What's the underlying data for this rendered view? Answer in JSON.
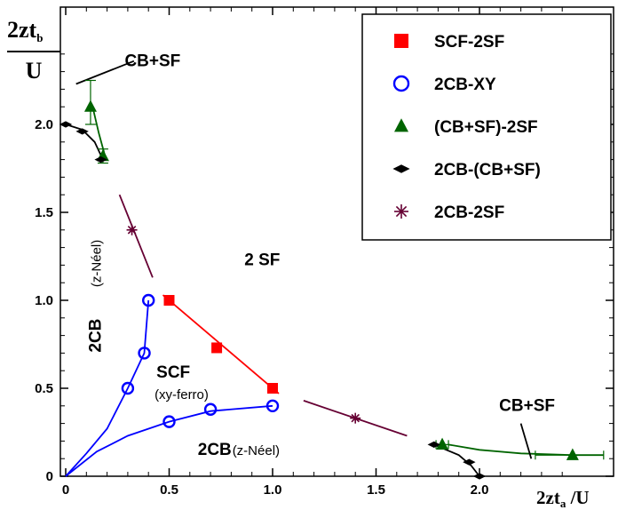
{
  "chart_data": {
    "type": "scatter",
    "title": "",
    "ylabel": {
      "main": "2zt",
      "sub": "b",
      "denominator": "U"
    },
    "xlabel": {
      "main": "2zt",
      "sub": "a",
      "suffix": "/U"
    },
    "xlim": [
      0,
      2.6
    ],
    "ylim": [
      0,
      2.25
    ],
    "xticks": [
      "0",
      "0.5",
      "1.0",
      "1.5",
      "2.0"
    ],
    "xtick_values": [
      0,
      0.5,
      1.0,
      1.5,
      2.0
    ],
    "yticks": [
      "0",
      "0.5",
      "1.0",
      "1.5",
      "2.0"
    ],
    "ytick_values": [
      0,
      0.5,
      1.0,
      1.5,
      2.0
    ],
    "grid": false,
    "legend_position": "top-right",
    "series": [
      {
        "name": "SCF-2SF",
        "marker": "filled-square",
        "color": "#ff0000",
        "x": [
          0.5,
          0.73,
          1.0
        ],
        "y": [
          1.0,
          0.73,
          0.5
        ]
      },
      {
        "name": "2CB-XY",
        "marker": "open-circle",
        "color": "#0000ff",
        "x": [
          0.3,
          0.38,
          0.4,
          0.5,
          0.7,
          1.0
        ],
        "y": [
          0.5,
          0.7,
          1.0,
          0.31,
          0.38,
          0.4
        ]
      },
      {
        "name": "(CB+SF)-2SF",
        "marker": "filled-triangle",
        "color": "#006400",
        "x": [
          0.12,
          0.18,
          1.82,
          2.45
        ],
        "y": [
          2.1,
          1.82,
          0.18,
          0.12
        ]
      },
      {
        "name": "2CB-(CB+SF)",
        "marker": "filled-diamond",
        "color": "#000000",
        "x": [
          0.0,
          0.08,
          0.17,
          1.78,
          1.95,
          2.0
        ],
        "y": [
          2.0,
          1.96,
          1.8,
          0.18,
          0.08,
          0.0
        ]
      },
      {
        "name": "2CB-2SF",
        "marker": "asterisk",
        "color": "#660033",
        "x": [
          0.32,
          1.4
        ],
        "y": [
          1.4,
          0.33
        ]
      }
    ],
    "curves": [
      {
        "color": "#ff0000",
        "points": [
          [
            0.47,
            1.03
          ],
          [
            1.03,
            0.47
          ]
        ]
      },
      {
        "color": "#0000ff",
        "points": [
          [
            0,
            0
          ],
          [
            0.1,
            0.13
          ],
          [
            0.2,
            0.27
          ],
          [
            0.3,
            0.5
          ],
          [
            0.38,
            0.7
          ],
          [
            0.4,
            1.0
          ]
        ]
      },
      {
        "color": "#0000ff",
        "points": [
          [
            0,
            0
          ],
          [
            0.15,
            0.14
          ],
          [
            0.3,
            0.23
          ],
          [
            0.5,
            0.31
          ],
          [
            0.7,
            0.37
          ],
          [
            1.0,
            0.4
          ]
        ]
      },
      {
        "color": "#660033",
        "points": [
          [
            0.26,
            1.6
          ],
          [
            0.42,
            1.13
          ]
        ]
      },
      {
        "color": "#660033",
        "points": [
          [
            1.15,
            0.43
          ],
          [
            1.65,
            0.23
          ]
        ]
      },
      {
        "color": "#006400",
        "points": [
          [
            0.13,
            2.1
          ],
          [
            0.16,
            1.95
          ],
          [
            0.19,
            1.82
          ]
        ]
      },
      {
        "color": "#006400",
        "points": [
          [
            1.85,
            0.18
          ],
          [
            2.0,
            0.15
          ],
          [
            2.2,
            0.13
          ],
          [
            2.45,
            0.12
          ],
          [
            2.6,
            0.12
          ]
        ]
      },
      {
        "color": "#000000",
        "points": [
          [
            0.0,
            2.0
          ],
          [
            0.08,
            1.97
          ],
          [
            0.14,
            1.9
          ],
          [
            0.18,
            1.8
          ]
        ]
      },
      {
        "color": "#000000",
        "points": [
          [
            1.78,
            0.18
          ],
          [
            1.9,
            0.12
          ],
          [
            1.96,
            0.06
          ],
          [
            2.0,
            0.0
          ]
        ]
      },
      {
        "color": "#000000",
        "points": [
          [
            0.05,
            2.23
          ],
          [
            0.33,
            2.36
          ]
        ]
      },
      {
        "color": "#000000",
        "points": [
          [
            2.2,
            0.3
          ],
          [
            2.25,
            0.1
          ]
        ]
      }
    ],
    "error_bars": [
      {
        "color": "#006400",
        "orient": "v",
        "x": 0.12,
        "from": 2.0,
        "to": 2.25
      },
      {
        "color": "#006400",
        "orient": "v",
        "x": 0.18,
        "from": 1.78,
        "to": 1.86
      },
      {
        "color": "#006400",
        "orient": "h",
        "y": 0.12,
        "from": 2.27,
        "to": 2.6
      },
      {
        "color": "#006400",
        "orient": "h",
        "y": 0.18,
        "from": 1.79,
        "to": 1.85
      }
    ],
    "annotations": [
      {
        "text": "CB+SF",
        "style": "big",
        "x": 0.42,
        "y": 2.33
      },
      {
        "text": "2 SF",
        "style": "big",
        "x": 0.95,
        "y": 1.2
      },
      {
        "text": "SCF",
        "style": "big",
        "x": 0.52,
        "y": 0.56
      },
      {
        "text": "(xy-ferro)",
        "style": "small",
        "x": 0.56,
        "y": 0.44
      },
      {
        "text": "2CB",
        "style": "big",
        "x": 0.72,
        "y": 0.12
      },
      {
        "text": "(z-Néel)",
        "style": "small",
        "x": 0.92,
        "y": 0.12
      },
      {
        "text": "CB+SF",
        "style": "big",
        "x": 2.23,
        "y": 0.37
      }
    ],
    "rotated_annotations": [
      {
        "text": "2CB",
        "style": "big",
        "x": 0.17,
        "y": 0.8
      },
      {
        "text": "(z-Néel)",
        "style": "small",
        "x": 0.17,
        "y": 1.21
      }
    ]
  }
}
